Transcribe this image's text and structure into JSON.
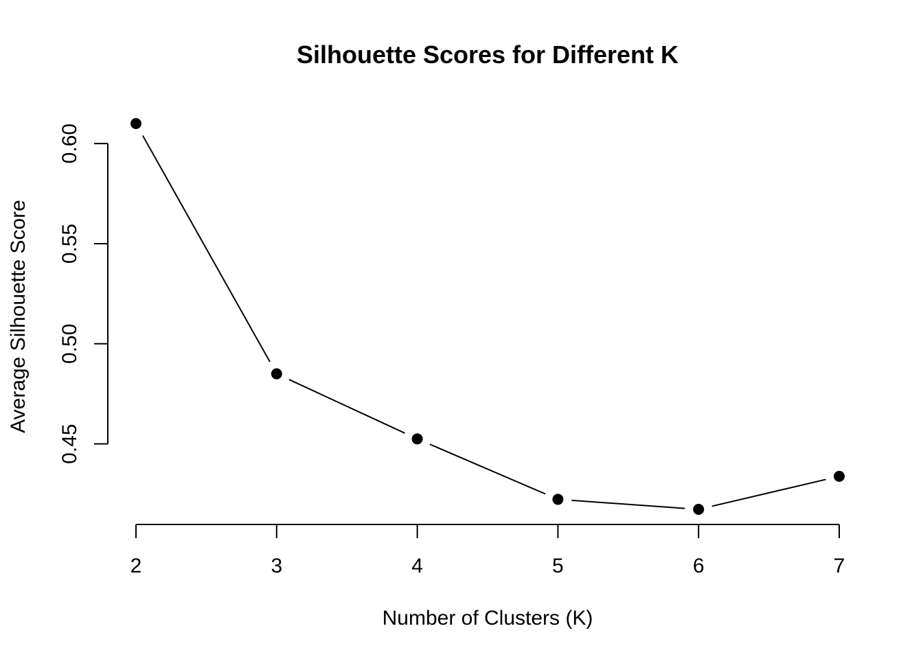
{
  "chart_data": {
    "type": "line",
    "title": "Silhouette Scores for Different K",
    "xlabel": "Number of Clusters (K)",
    "ylabel": "Average Silhouette Score",
    "x": [
      2,
      3,
      4,
      5,
      6,
      7
    ],
    "values": [
      0.61,
      0.485,
      0.4525,
      0.4223,
      0.4173,
      0.4338
    ],
    "xticks": [
      "2",
      "3",
      "4",
      "5",
      "6",
      "7"
    ],
    "yticks": [
      0.45,
      0.5,
      0.55,
      0.6
    ],
    "ytick_labels": [
      "0.45",
      "0.50",
      "0.55",
      "0.60"
    ],
    "xlim": [
      2,
      7
    ],
    "ylim": [
      0.4173,
      0.61
    ],
    "grid": false,
    "marker": "filled-circle",
    "line_style": "overplotted (line segments with gaps around points)",
    "colors": {
      "line": "#000000",
      "points": "#000000",
      "background": "#ffffff"
    }
  }
}
